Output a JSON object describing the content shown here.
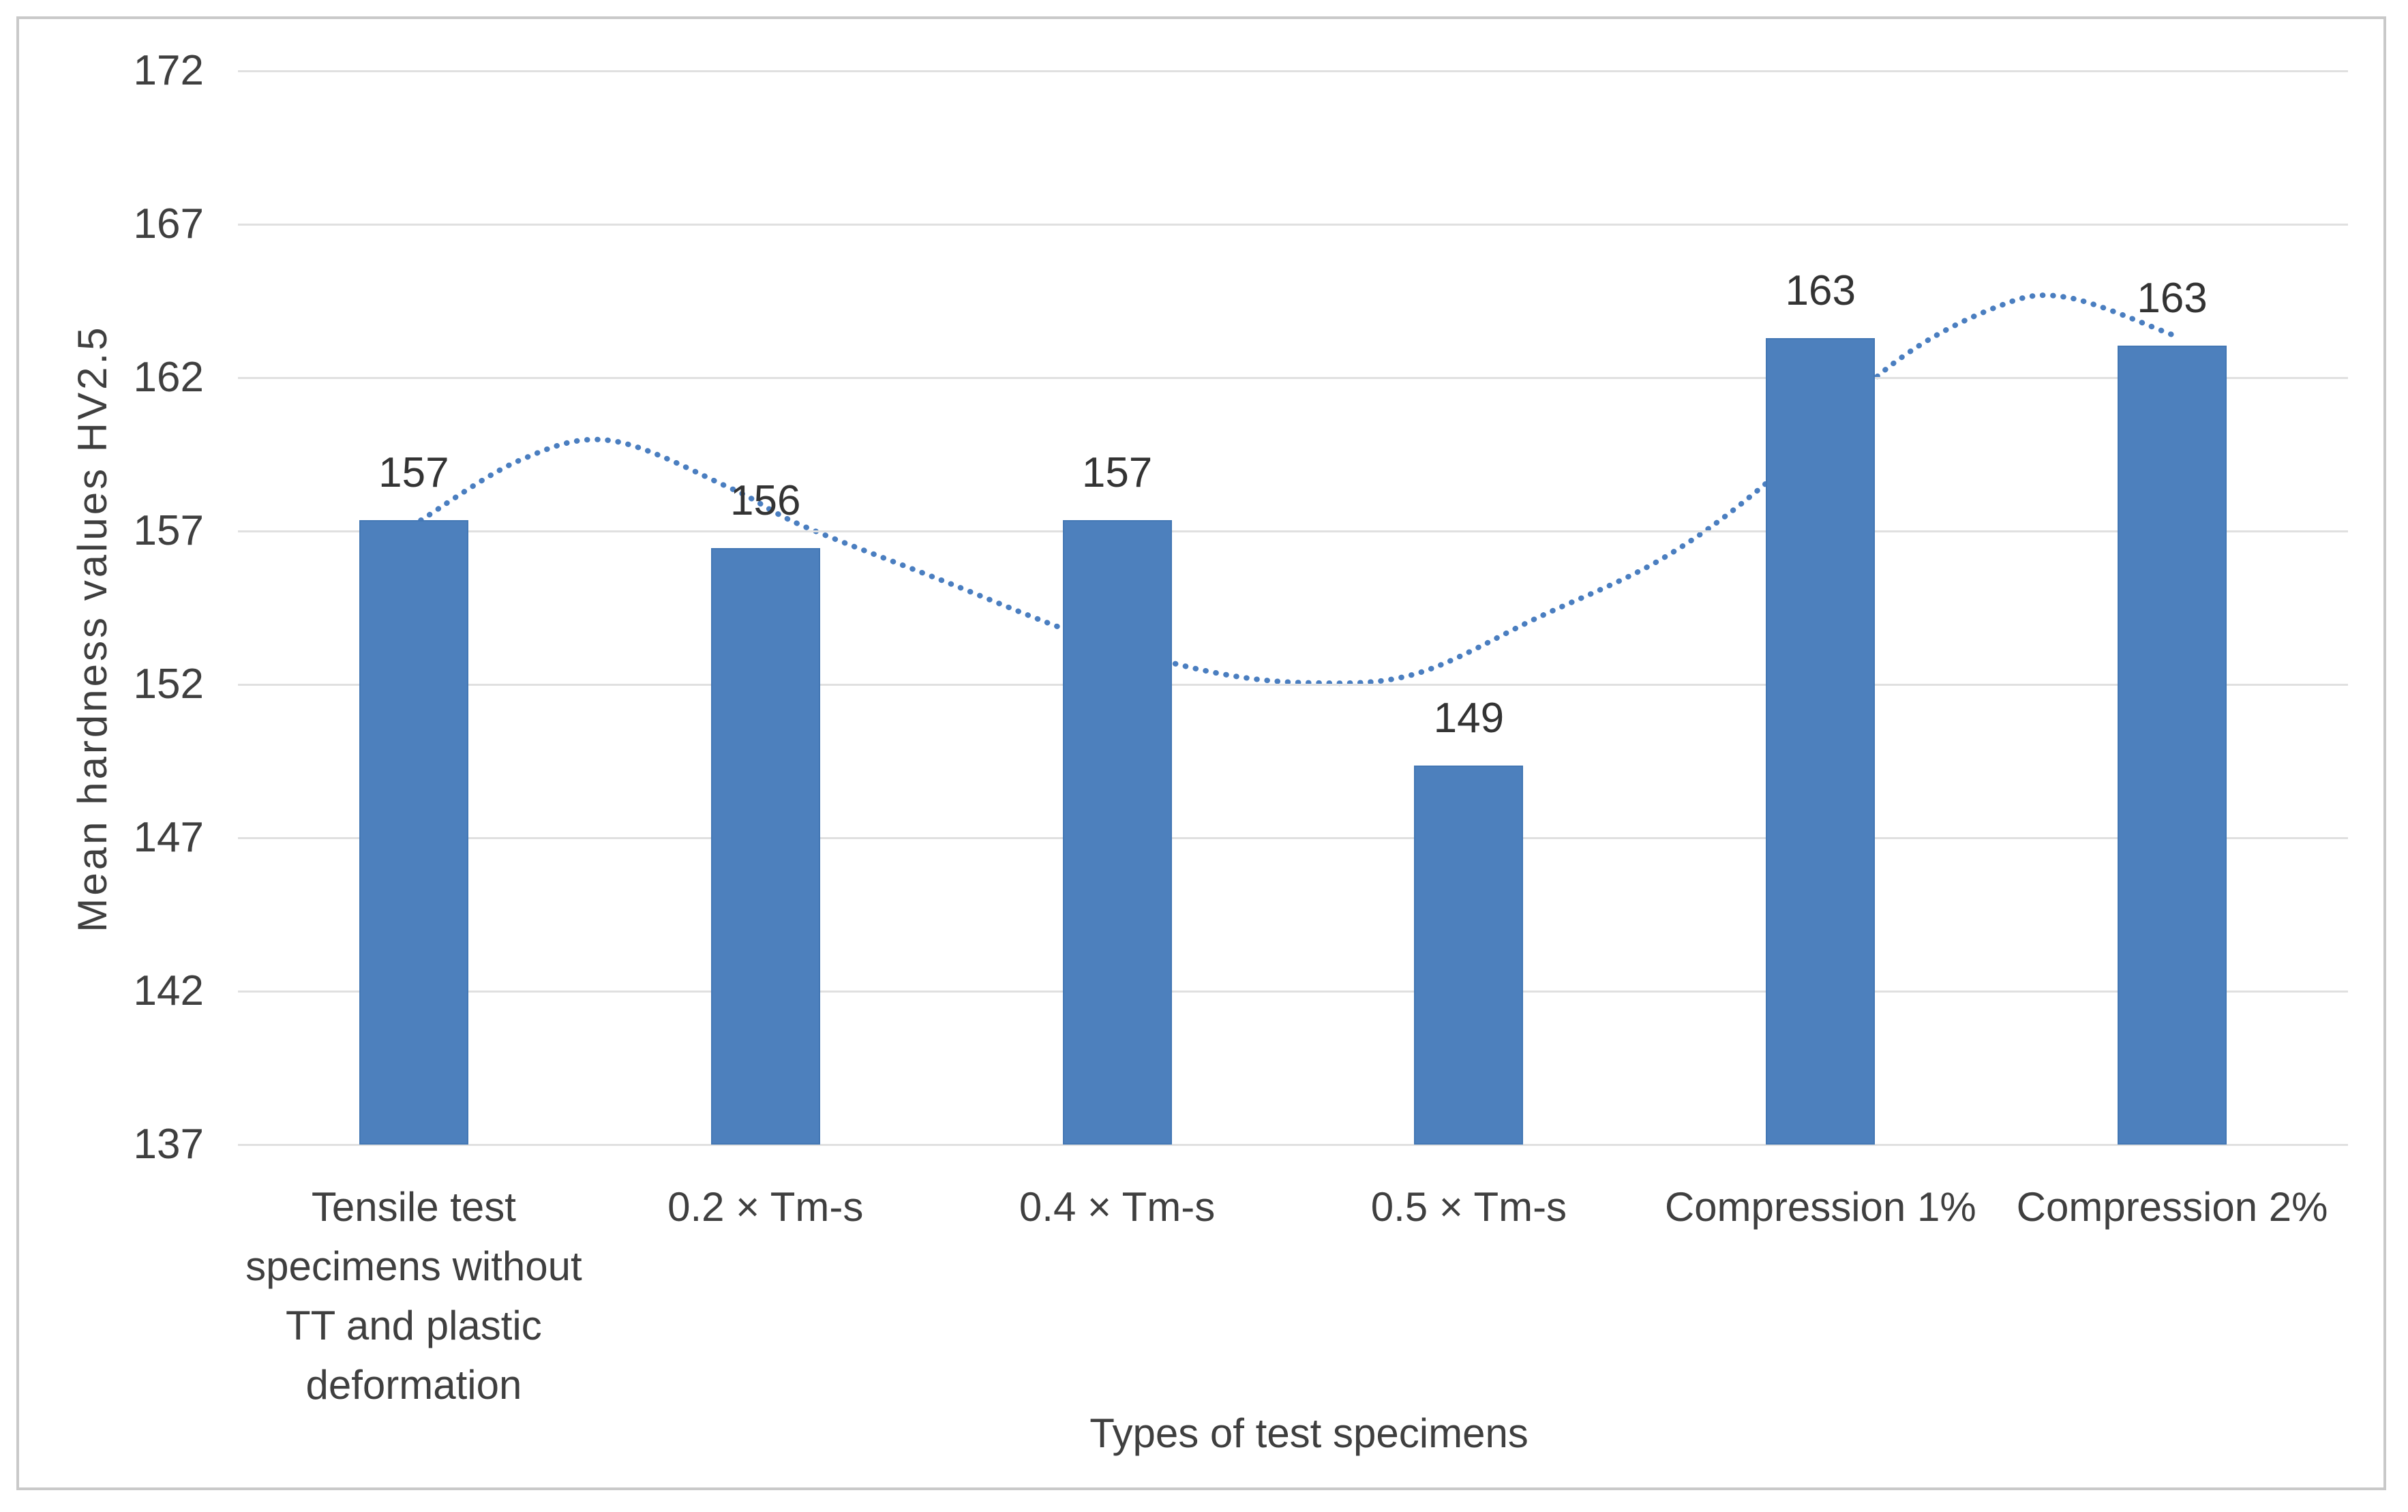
{
  "frame": {
    "border_color": "#c9c9c9",
    "background": "#ffffff"
  },
  "chart_data": {
    "type": "bar",
    "title": "",
    "categories": [
      "Tensile test specimens without TT and plastic deformation",
      "0.2 × Tm-s",
      "0.4 × Tm-s",
      "0.5 × Tm-s",
      "Compression 1%",
      "Compression 2%"
    ],
    "category_tick_lines": [
      [
        "Tensile test",
        "specimens without",
        "TT and plastic",
        "deformation"
      ],
      [
        "0.2 × Tm-s"
      ],
      [
        "0.4 × Tm-s"
      ],
      [
        "0.5 × Tm-s"
      ],
      [
        "Compression 1%"
      ],
      [
        "Compression 2%"
      ]
    ],
    "values": [
      157,
      156,
      157,
      149,
      163,
      163
    ],
    "data_labels": [
      "157",
      "156",
      "157",
      "149",
      "163",
      "163"
    ],
    "bar_tops_precise": [
      157.35,
      156.45,
      157.35,
      149.35,
      163.3,
      163.05
    ],
    "xlabel": "Types of test specimens",
    "ylabel": "Mean hardness values HV2.5",
    "ylim": [
      137,
      172
    ],
    "yticks": [
      172,
      167,
      162,
      157,
      152,
      147,
      142,
      137
    ],
    "grid": true,
    "legend": false,
    "series": [
      {
        "name": "Mean hardness values",
        "type": "bar",
        "values": [
          157,
          156,
          157,
          149,
          163,
          163
        ]
      },
      {
        "name": "Trendline",
        "type": "dotted-curve",
        "points_category_value": [
          [
            0.02,
            157.35
          ],
          [
            0.3,
            159.3
          ],
          [
            0.56,
            159.95
          ],
          [
            0.9,
            158.4
          ],
          [
            1.1,
            157.2
          ],
          [
            1.5,
            155.4
          ],
          [
            1.9,
            153.6
          ],
          [
            2.25,
            152.45
          ],
          [
            2.55,
            152.05
          ],
          [
            2.85,
            152.35
          ],
          [
            3.2,
            154.2
          ],
          [
            3.55,
            156.1
          ],
          [
            3.85,
            158.6
          ],
          [
            4.2,
            162.4
          ],
          [
            4.5,
            164.3
          ],
          [
            4.7,
            164.62
          ],
          [
            5.0,
            163.4
          ]
        ]
      }
    ],
    "colors": {
      "bar": "#4d80bd",
      "bar_edge": "#4377b4",
      "trend": "#4a7ec0",
      "gridline": "#e0e0e0",
      "text": "#3f3f3f",
      "data_label_text": "#333333"
    }
  }
}
